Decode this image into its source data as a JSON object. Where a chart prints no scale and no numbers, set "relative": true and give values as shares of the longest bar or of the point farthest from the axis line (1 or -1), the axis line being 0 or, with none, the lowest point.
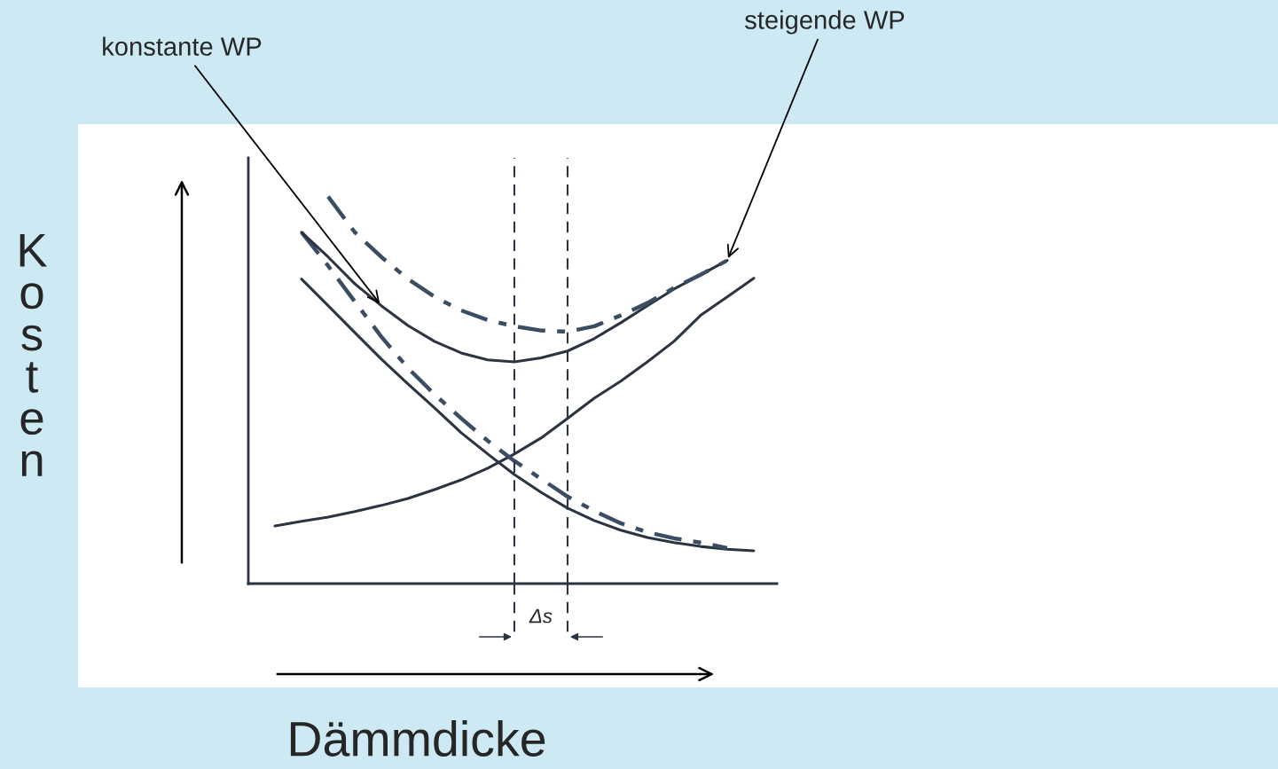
{
  "chart_data": {
    "type": "line",
    "relative": true,
    "xlabel": "Dämmdicke",
    "ylabel": "Kosten",
    "categories": [
      null,
      null,
      null,
      null,
      null,
      null,
      null,
      null,
      null,
      null,
      null,
      null,
      null,
      null,
      null,
      null,
      null,
      null,
      null
    ],
    "series": [
      {
        "color": "#2b3440",
        "line_style": "solid",
        "values": [
          0.149,
          0.161,
          0.172,
          0.186,
          0.202,
          0.22,
          0.243,
          0.268,
          0.298,
          0.335,
          0.376,
          0.427,
          0.479,
          0.523,
          0.573,
          0.626,
          0.693,
          0.741,
          0.789
        ]
      },
      {
        "color": "#2b3440",
        "line_style": "solid",
        "values": [
          null,
          0.787,
          0.718,
          0.649,
          0.58,
          0.516,
          0.454,
          0.39,
          0.335,
          0.282,
          0.236,
          0.195,
          0.163,
          0.138,
          0.119,
          0.106,
          0.096,
          0.089,
          0.085
        ]
      },
      {
        "color": "#3a4d63",
        "line_style": "dashed",
        "values": [
          null,
          0.908,
          0.821,
          0.729,
          0.638,
          0.557,
          0.489,
          0.427,
          0.369,
          0.317,
          0.271,
          0.225,
          0.188,
          0.156,
          0.133,
          0.117,
          0.106,
          0.092,
          null
        ]
      },
      {
        "name": "konstante WP",
        "color": "#2b3440",
        "line_style": "solid",
        "values": [
          null,
          0.908,
          0.844,
          0.775,
          0.718,
          0.667,
          0.626,
          0.596,
          0.578,
          0.573,
          0.583,
          0.601,
          0.633,
          0.674,
          0.718,
          0.761,
          0.798,
          0.835,
          null
        ]
      },
      {
        "name": "steigende WP",
        "color": "#3a4d63",
        "line_style": "dashed",
        "values": [
          null,
          null,
          1.0,
          0.908,
          0.844,
          0.787,
          0.741,
          0.706,
          0.681,
          0.665,
          0.654,
          0.651,
          0.665,
          0.693,
          0.725,
          0.764,
          0.798,
          0.835,
          null
        ]
      }
    ],
    "annotations": [
      "Δs"
    ]
  }
}
